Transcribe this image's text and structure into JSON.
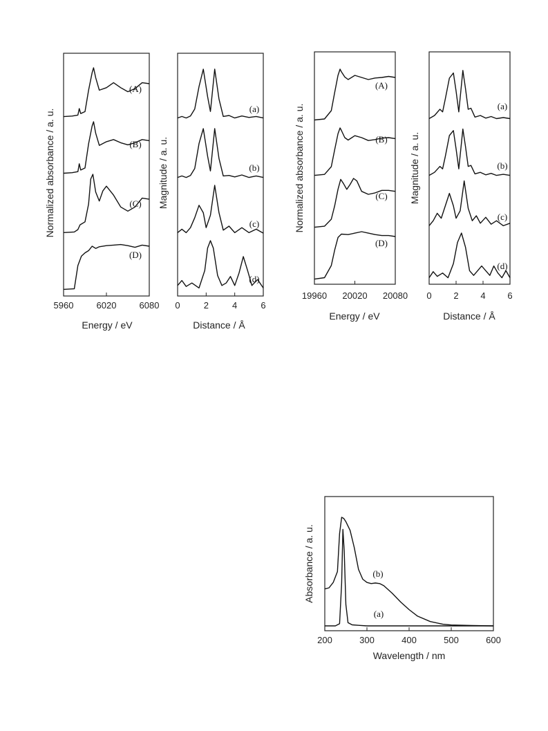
{
  "chart_data": [
    {
      "type": "line",
      "xlabel": "Energy / eV",
      "ylabel": "Normalized absorbance / a. u.",
      "xlim": [
        5960,
        6080
      ],
      "xticks": [
        "5960",
        "6020",
        "6080"
      ],
      "series": [
        {
          "name": "(A)",
          "x": [
            5960,
            5972,
            5980,
            5982,
            5984,
            5990,
            5995,
            6000,
            6002,
            6005,
            6010,
            6020,
            6030,
            6040,
            6050,
            6060,
            6070,
            6080
          ],
          "y": [
            0.02,
            0.03,
            0.05,
            0.18,
            0.08,
            0.12,
            0.55,
            0.9,
            1.0,
            0.8,
            0.55,
            0.6,
            0.7,
            0.6,
            0.52,
            0.58,
            0.7,
            0.68
          ]
        },
        {
          "name": "(B)",
          "x": [
            5960,
            5972,
            5980,
            5982,
            5984,
            5990,
            5995,
            6000,
            6002,
            6005,
            6010,
            6020,
            6030,
            6040,
            6050,
            6060,
            6070,
            6080
          ],
          "y": [
            0.02,
            0.03,
            0.05,
            0.2,
            0.08,
            0.12,
            0.58,
            0.92,
            1.0,
            0.78,
            0.55,
            0.62,
            0.66,
            0.6,
            0.56,
            0.6,
            0.66,
            0.64
          ]
        },
        {
          "name": "(C)",
          "x": [
            5960,
            5975,
            5980,
            5983,
            5990,
            5995,
            5998,
            6001,
            6005,
            6010,
            6015,
            6020,
            6030,
            6040,
            6050,
            6060,
            6070,
            6080
          ],
          "y": [
            0.02,
            0.03,
            0.07,
            0.15,
            0.2,
            0.5,
            0.92,
            1.0,
            0.7,
            0.55,
            0.72,
            0.8,
            0.65,
            0.45,
            0.38,
            0.45,
            0.6,
            0.58
          ]
        },
        {
          "name": "(D)",
          "x": [
            5960,
            5975,
            5980,
            5985,
            5990,
            5995,
            6000,
            6005,
            6010,
            6020,
            6030,
            6040,
            6050,
            6060,
            6070,
            6080
          ],
          "y": [
            0.02,
            0.03,
            0.45,
            0.62,
            0.68,
            0.72,
            0.8,
            0.76,
            0.79,
            0.81,
            0.82,
            0.83,
            0.81,
            0.78,
            0.82,
            0.8
          ]
        }
      ]
    },
    {
      "type": "line",
      "xlabel": "Distance / Å",
      "ylabel": "Magnitude / a. u.",
      "xlim": [
        0,
        6
      ],
      "xticks": [
        "0",
        "2",
        "4",
        "6"
      ],
      "series": [
        {
          "name": "(a)",
          "x": [
            0,
            0.3,
            0.6,
            0.9,
            1.2,
            1.5,
            1.8,
            2.1,
            2.3,
            2.6,
            2.9,
            3.2,
            3.6,
            4.0,
            4.5,
            5.0,
            5.5,
            6.0
          ],
          "y": [
            0.02,
            0.05,
            0.02,
            0.06,
            0.2,
            0.65,
            1.0,
            0.45,
            0.15,
            1.0,
            0.4,
            0.05,
            0.07,
            0.02,
            0.06,
            0.03,
            0.05,
            0.02
          ]
        },
        {
          "name": "(b)",
          "x": [
            0,
            0.3,
            0.6,
            0.9,
            1.2,
            1.5,
            1.8,
            2.1,
            2.3,
            2.6,
            2.9,
            3.2,
            3.6,
            4.0,
            4.5,
            5.0,
            5.5,
            6.0
          ],
          "y": [
            0.02,
            0.05,
            0.02,
            0.06,
            0.2,
            0.7,
            1.0,
            0.45,
            0.15,
            1.0,
            0.4,
            0.05,
            0.06,
            0.03,
            0.07,
            0.02,
            0.05,
            0.02
          ]
        },
        {
          "name": "(c)",
          "x": [
            0,
            0.3,
            0.6,
            0.9,
            1.2,
            1.5,
            1.8,
            2.0,
            2.3,
            2.6,
            2.9,
            3.2,
            3.6,
            4.0,
            4.5,
            5.0,
            5.5,
            6.0
          ],
          "y": [
            0.05,
            0.12,
            0.05,
            0.15,
            0.35,
            0.6,
            0.45,
            0.15,
            0.4,
            1.0,
            0.45,
            0.1,
            0.18,
            0.05,
            0.15,
            0.05,
            0.12,
            0.04
          ]
        },
        {
          "name": "(d)",
          "x": [
            0,
            0.3,
            0.6,
            1.0,
            1.5,
            1.9,
            2.1,
            2.3,
            2.5,
            2.8,
            3.1,
            3.4,
            3.7,
            4.0,
            4.3,
            4.6,
            4.9,
            5.2,
            5.6,
            6.0
          ],
          "y": [
            0.1,
            0.2,
            0.08,
            0.15,
            0.05,
            0.4,
            0.85,
            1.0,
            0.85,
            0.3,
            0.1,
            0.15,
            0.28,
            0.1,
            0.35,
            0.68,
            0.4,
            0.1,
            0.22,
            0.05
          ]
        }
      ]
    },
    {
      "type": "line",
      "xlabel": "Energy / eV",
      "ylabel": "Normalized absorbance / a. u.",
      "xlim": [
        19960,
        20080
      ],
      "xticks": [
        "19960",
        "20020",
        "20080"
      ],
      "series": [
        {
          "name": "(A)",
          "x": [
            19960,
            19975,
            19985,
            19990,
            19995,
            19998,
            20000,
            20005,
            20010,
            20020,
            20030,
            20040,
            20050,
            20060,
            20070,
            20080
          ],
          "y": [
            0.02,
            0.04,
            0.2,
            0.55,
            0.88,
            1.0,
            0.95,
            0.85,
            0.8,
            0.88,
            0.84,
            0.8,
            0.83,
            0.84,
            0.86,
            0.84
          ]
        },
        {
          "name": "(B)",
          "x": [
            19960,
            19975,
            19985,
            19990,
            19995,
            19998,
            20000,
            20005,
            20010,
            20020,
            20030,
            20040,
            20050,
            20060,
            20070,
            20080
          ],
          "y": [
            0.02,
            0.04,
            0.2,
            0.55,
            0.88,
            1.0,
            0.95,
            0.8,
            0.75,
            0.84,
            0.8,
            0.74,
            0.76,
            0.79,
            0.8,
            0.78
          ]
        },
        {
          "name": "(C)",
          "x": [
            19960,
            19975,
            19985,
            19990,
            19995,
            19999,
            20003,
            20008,
            20013,
            20018,
            20023,
            20030,
            20040,
            20050,
            20060,
            20070,
            20080
          ],
          "y": [
            0.02,
            0.04,
            0.18,
            0.45,
            0.78,
            0.98,
            0.9,
            0.78,
            0.88,
            1.0,
            0.95,
            0.74,
            0.68,
            0.71,
            0.76,
            0.76,
            0.74
          ]
        },
        {
          "name": "(D)",
          "x": [
            19960,
            19975,
            19985,
            19990,
            19995,
            20000,
            20010,
            20020,
            20030,
            20040,
            20050,
            20060,
            20070,
            20080
          ],
          "y": [
            0.02,
            0.05,
            0.3,
            0.62,
            0.88,
            0.95,
            0.94,
            0.97,
            1.0,
            0.97,
            0.94,
            0.92,
            0.92,
            0.9
          ]
        }
      ]
    },
    {
      "type": "line",
      "xlabel": "Distance / Å",
      "ylabel": "Magnitude / a. u.",
      "xlim": [
        0,
        6
      ],
      "xticks": [
        "0",
        "2",
        "4",
        "6"
      ],
      "series": [
        {
          "name": "(a)",
          "x": [
            0,
            0.4,
            0.8,
            1.0,
            1.2,
            1.5,
            1.8,
            2.0,
            2.2,
            2.5,
            2.7,
            2.9,
            3.1,
            3.4,
            3.8,
            4.2,
            4.6,
            5.0,
            5.5,
            6.0
          ],
          "y": [
            0.02,
            0.08,
            0.2,
            0.15,
            0.4,
            0.8,
            0.9,
            0.55,
            0.15,
            0.95,
            0.6,
            0.2,
            0.22,
            0.05,
            0.08,
            0.03,
            0.06,
            0.02,
            0.04,
            0.02
          ]
        },
        {
          "name": "(b)",
          "x": [
            0,
            0.4,
            0.8,
            1.0,
            1.2,
            1.5,
            1.8,
            2.0,
            2.2,
            2.5,
            2.7,
            2.9,
            3.1,
            3.4,
            3.8,
            4.2,
            4.6,
            5.0,
            5.5,
            6.0
          ],
          "y": [
            0.02,
            0.08,
            0.2,
            0.15,
            0.4,
            0.82,
            0.92,
            0.55,
            0.15,
            0.95,
            0.6,
            0.2,
            0.22,
            0.05,
            0.08,
            0.03,
            0.06,
            0.02,
            0.04,
            0.02
          ]
        },
        {
          "name": "(c)",
          "x": [
            0,
            0.3,
            0.6,
            0.9,
            1.2,
            1.5,
            1.8,
            2.0,
            2.3,
            2.6,
            2.9,
            3.2,
            3.5,
            3.8,
            4.2,
            4.6,
            5.0,
            5.5,
            6.0
          ],
          "y": [
            0.05,
            0.15,
            0.3,
            0.2,
            0.45,
            0.7,
            0.45,
            0.2,
            0.35,
            0.95,
            0.4,
            0.15,
            0.25,
            0.1,
            0.22,
            0.08,
            0.15,
            0.05,
            0.1
          ]
        },
        {
          "name": "(d)",
          "x": [
            0,
            0.3,
            0.6,
            1.0,
            1.4,
            1.8,
            2.1,
            2.4,
            2.7,
            3.0,
            3.3,
            3.6,
            3.9,
            4.2,
            4.5,
            4.8,
            5.1,
            5.4,
            5.7,
            6.0
          ],
          "y": [
            0.05,
            0.18,
            0.08,
            0.15,
            0.05,
            0.35,
            0.8,
            1.0,
            0.7,
            0.2,
            0.1,
            0.2,
            0.3,
            0.2,
            0.1,
            0.3,
            0.15,
            0.05,
            0.2,
            0.05
          ]
        }
      ]
    },
    {
      "type": "line",
      "xlabel": "Wavelength / nm",
      "ylabel": "Absorbance / a. u.",
      "xlim": [
        200,
        600
      ],
      "xticks": [
        "200",
        "300",
        "400",
        "500",
        "600"
      ],
      "series": [
        {
          "name": "(a)",
          "x": [
            200,
            225,
            235,
            240,
            243,
            246,
            250,
            255,
            265,
            280,
            300,
            600
          ],
          "y": [
            0.0,
            0.0,
            0.02,
            0.4,
            0.9,
            0.7,
            0.2,
            0.03,
            0.01,
            0.005,
            0.0,
            0.0
          ]
        },
        {
          "name": "(b)",
          "x": [
            200,
            210,
            220,
            230,
            235,
            240,
            245,
            250,
            260,
            270,
            280,
            290,
            300,
            310,
            320,
            330,
            340,
            360,
            380,
            400,
            420,
            450,
            480,
            500,
            550,
            600
          ],
          "y": [
            0.34,
            0.35,
            0.4,
            0.5,
            0.85,
            1.0,
            0.99,
            0.96,
            0.88,
            0.72,
            0.52,
            0.43,
            0.4,
            0.39,
            0.395,
            0.39,
            0.37,
            0.3,
            0.22,
            0.15,
            0.09,
            0.04,
            0.015,
            0.008,
            0.003,
            0.0
          ]
        }
      ]
    }
  ]
}
